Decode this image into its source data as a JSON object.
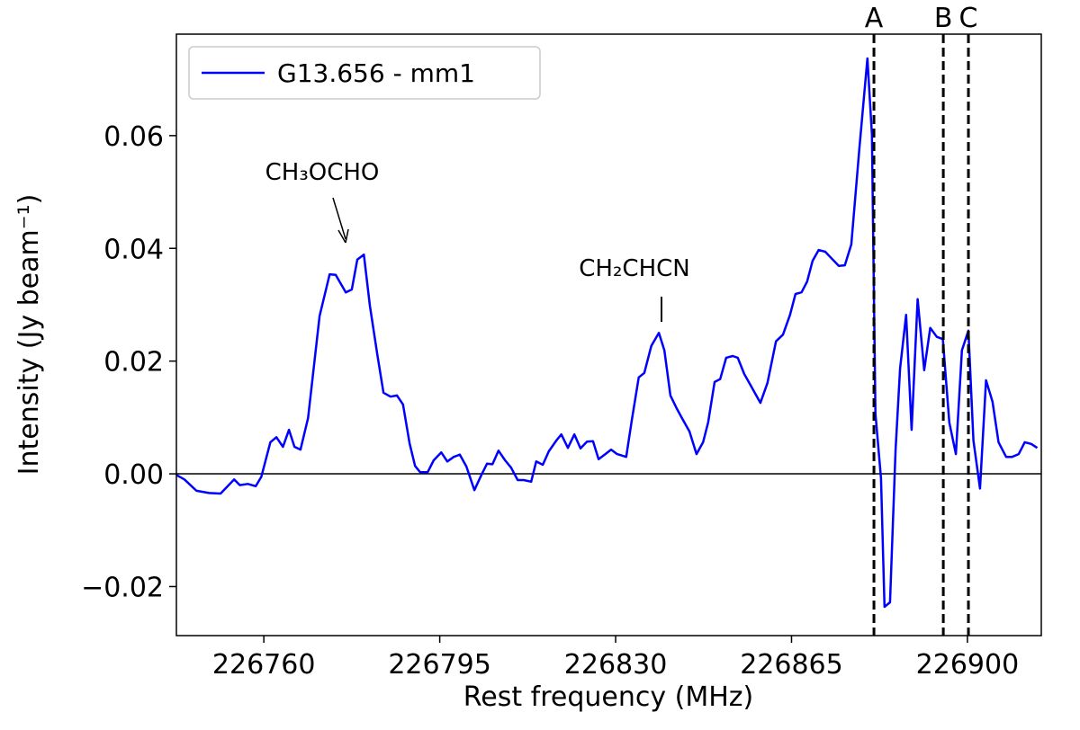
{
  "chart_data": {
    "type": "line",
    "xlabel": "Rest frequency (MHz)",
    "ylabel": "Intensity (Jy beam⁻¹)",
    "x": [
      226742.6,
      226744.2,
      226746.6,
      226749.1,
      226751.4,
      226754.1,
      226755.2,
      226756.8,
      226758.4,
      226759.5,
      226761.3,
      226762.5,
      226763.8,
      226765.0,
      226766.1,
      226767.3,
      226768.8,
      226771.1,
      226773.1,
      226774.3,
      226776.3,
      226777.5,
      226778.6,
      226779.9,
      226781.1,
      226782.6,
      226783.8,
      226785.2,
      226786.5,
      226787.7,
      226789.0,
      226790.1,
      226791.1,
      226792.6,
      226793.8,
      226795.3,
      226796.5,
      226797.8,
      226799.0,
      226800.3,
      226801.9,
      226803.3,
      226804.4,
      226805.5,
      226806.7,
      226808.0,
      226809.2,
      226810.5,
      226811.7,
      226813.2,
      226814.2,
      226815.5,
      226816.7,
      226818.2,
      226819.2,
      226820.5,
      226821.8,
      226823.0,
      226824.3,
      226825.5,
      226826.6,
      226827.8,
      226829.1,
      226830.3,
      226832.1,
      226833.2,
      226834.6,
      226835.7,
      226837.1,
      226838.6,
      226839.7,
      226840.9,
      226842.2,
      226843.2,
      226844.7,
      226846.1,
      226847.4,
      226848.4,
      226849.7,
      226850.8,
      226852.0,
      226853.3,
      226854.3,
      226855.6,
      226856.8,
      226858.8,
      226860.2,
      226861.9,
      226863.3,
      226864.7,
      226865.8,
      226867.0,
      226868.1,
      226869.2,
      226870.4,
      226871.7,
      226873.1,
      226874.4,
      226875.6,
      226876.9,
      226878.5,
      226880.1,
      226881.0,
      226881.7,
      226882.8,
      226883.5,
      226884.6,
      226885.7,
      226886.6,
      226887.8,
      226888.9,
      226890.1,
      226891.4,
      226892.6,
      226893.9,
      226895.1,
      226896.4,
      226897.7,
      226898.9,
      226900.2,
      226901.2,
      226902.5,
      226903.7,
      226905.0,
      226906.2,
      226907.7,
      226908.9,
      226910.2,
      226911.4,
      226912.7,
      226913.9
    ],
    "series": [
      {
        "name": "G13.656 - mm1",
        "color": "#0000ff",
        "values": [
          -0.0002,
          -0.001,
          -0.003,
          -0.0034,
          -0.0035,
          -0.001,
          -0.002,
          -0.0018,
          -0.0022,
          -0.0005,
          0.0056,
          0.0065,
          0.0048,
          0.0078,
          0.0048,
          0.0043,
          0.0099,
          0.028,
          0.0354,
          0.0353,
          0.0322,
          0.0327,
          0.038,
          0.0389,
          0.0298,
          0.021,
          0.0144,
          0.0137,
          0.0139,
          0.0123,
          0.0054,
          0.0014,
          0.0003,
          0.0003,
          0.0024,
          0.0038,
          0.0022,
          0.003,
          0.0034,
          0.0013,
          -0.0029,
          -0.0002,
          0.0018,
          0.0017,
          0.0041,
          0.0024,
          0.0011,
          -0.0011,
          -0.0011,
          -0.0014,
          0.0022,
          0.0016,
          0.004,
          0.0059,
          0.007,
          0.0046,
          0.007,
          0.0045,
          0.0057,
          0.0058,
          0.0026,
          0.0034,
          0.0043,
          0.0035,
          0.003,
          0.0094,
          0.0171,
          0.0179,
          0.0227,
          0.025,
          0.0219,
          0.0139,
          0.0115,
          0.0099,
          0.0075,
          0.0035,
          0.0056,
          0.0091,
          0.0163,
          0.0168,
          0.0206,
          0.0209,
          0.0206,
          0.0177,
          0.0158,
          0.0126,
          0.0161,
          0.0235,
          0.0247,
          0.0282,
          0.0319,
          0.0322,
          0.0341,
          0.0378,
          0.0397,
          0.0394,
          0.0381,
          0.0369,
          0.037,
          0.0407,
          0.0578,
          0.0737,
          0.0602,
          0.0107,
          -0.0008,
          -0.0236,
          -0.0228,
          0.0043,
          0.0187,
          0.0282,
          0.0078,
          0.031,
          0.0184,
          0.0259,
          0.0243,
          0.0239,
          0.0091,
          0.0035,
          0.0219,
          0.0254,
          0.0059,
          -0.0026,
          0.0166,
          0.0128,
          0.0056,
          0.003,
          0.003,
          0.0035,
          0.0056,
          0.0053,
          0.0046
        ]
      }
    ],
    "xlim": [
      226742.6,
      226914.7
    ],
    "ylim": [
      -0.0287,
      0.078
    ],
    "xticks": [
      226760,
      226795,
      226830,
      226865,
      226900
    ],
    "yticks": [
      {
        "value": -0.02,
        "label": "−0.02"
      },
      {
        "value": 0,
        "label": "0.00"
      },
      {
        "value": 0.02,
        "label": "0.02"
      },
      {
        "value": 0.04,
        "label": "0.04"
      },
      {
        "value": 0.06,
        "label": "0.06"
      }
    ],
    "vlines": [
      {
        "x": 226881.4,
        "label": "A"
      },
      {
        "x": 226895.2,
        "label": "B"
      },
      {
        "x": 226900.2,
        "label": "C"
      }
    ],
    "annotations": [
      "CH₃OCHO",
      "CH₂CHCN"
    ],
    "legend": "upper left",
    "zero_line": true
  }
}
